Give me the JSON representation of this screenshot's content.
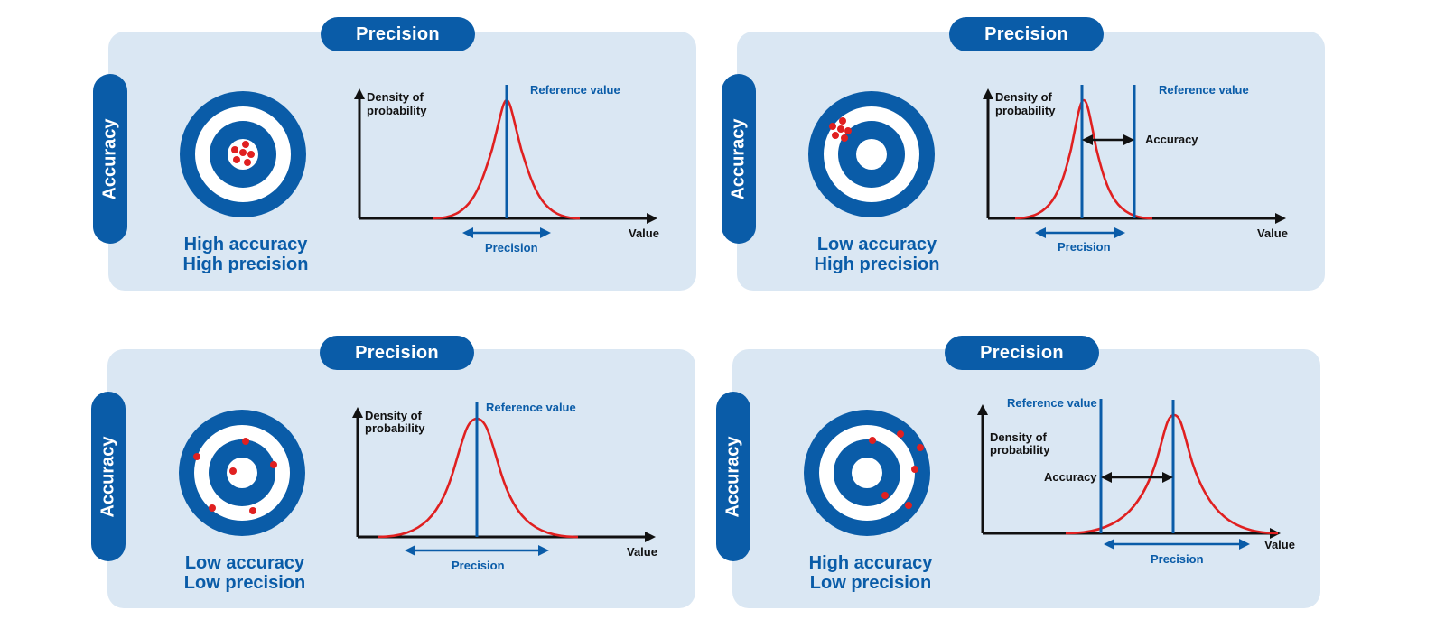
{
  "colors": {
    "panel": "#dae7f3",
    "blue": "#0a5ca8",
    "red": "#e02020",
    "dark": "#111111"
  },
  "labels": {
    "precision": "Precision",
    "accuracy": "Accuracy",
    "density_line1": "Density of",
    "density_line2": "probability",
    "value": "Value",
    "reference_value": "Reference value"
  },
  "panels": [
    {
      "caption_line1": "High accuracy",
      "caption_line2": "High precision"
    },
    {
      "caption_line1": "Low accuracy",
      "caption_line2": "High precision"
    },
    {
      "caption_line1": "Low accuracy",
      "caption_line2": "Low precision"
    },
    {
      "caption_line1": "High accuracy",
      "caption_line2": "Low precision"
    }
  ]
}
